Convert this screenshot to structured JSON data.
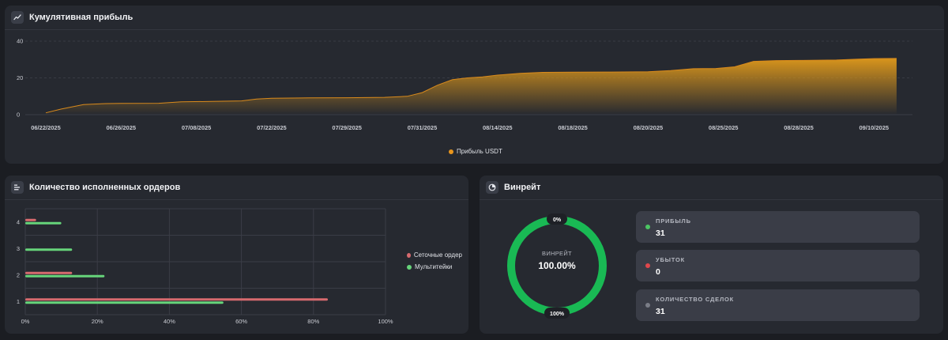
{
  "cumulative": {
    "title": "Кумулятивная прибыль",
    "icon": "trend-line-icon",
    "legend_label": "Прибыль USDT",
    "color": "#e8951c"
  },
  "orders": {
    "title": "Количество исполненных ордеров",
    "icon": "bar-list-icon",
    "legend": [
      "Сеточные ордер",
      "Мультитейки"
    ],
    "colors": [
      "#d76a6e",
      "#66d47a"
    ]
  },
  "winrate": {
    "title": "Винрейт",
    "icon": "pie-chart-icon",
    "center_label": "ВИНРЕЙТ",
    "center_value": "100.00%",
    "top_label": "0%",
    "bottom_label": "100%",
    "ring_color": "#19b954",
    "stats": [
      {
        "label": "ПРИБЫЛЬ",
        "value": "31",
        "color": "#4cc563"
      },
      {
        "label": "УБЫТОК",
        "value": "0",
        "color": "#e0474c"
      },
      {
        "label": "КОЛИЧЕСТВО СДЕЛОК",
        "value": "31",
        "color": "#7a7d87"
      }
    ]
  },
  "chart_data": [
    {
      "type": "area",
      "title": "Кумулятивная прибыль",
      "x_ticks": [
        "06/22/2025",
        "06/26/2025",
        "07/08/2025",
        "07/22/2025",
        "07/29/2025",
        "07/31/2025",
        "08/14/2025",
        "08/18/2025",
        "08/20/2025",
        "08/25/2025",
        "08/28/2025",
        "09/10/2025"
      ],
      "y_ticks": [
        0,
        20,
        40
      ],
      "ylim": [
        0,
        40
      ],
      "series": [
        {
          "name": "Прибыль USDT",
          "points": [
            [
              0.0,
              1.0
            ],
            [
              0.2,
              3.0
            ],
            [
              0.5,
              5.5
            ],
            [
              0.8,
              6.0
            ],
            [
              1.0,
              6.1
            ],
            [
              1.5,
              6.2
            ],
            [
              1.8,
              7.0
            ],
            [
              2.2,
              7.2
            ],
            [
              2.6,
              7.5
            ],
            [
              2.8,
              8.5
            ],
            [
              3.0,
              8.9
            ],
            [
              3.5,
              9.1
            ],
            [
              4.0,
              9.2
            ],
            [
              4.5,
              9.4
            ],
            [
              4.8,
              10.0
            ],
            [
              5.0,
              12.0
            ],
            [
              5.2,
              16.0
            ],
            [
              5.4,
              19.0
            ],
            [
              5.6,
              20.0
            ],
            [
              5.8,
              20.5
            ],
            [
              6.0,
              21.5
            ],
            [
              6.3,
              22.5
            ],
            [
              6.6,
              23.0
            ],
            [
              7.0,
              23.1
            ],
            [
              7.5,
              23.2
            ],
            [
              8.0,
              23.3
            ],
            [
              8.3,
              24.0
            ],
            [
              8.6,
              25.0
            ],
            [
              8.9,
              25.1
            ],
            [
              9.15,
              26.0
            ],
            [
              9.4,
              29.0
            ],
            [
              9.7,
              29.4
            ],
            [
              10.0,
              29.5
            ],
            [
              10.5,
              29.7
            ],
            [
              10.8,
              30.2
            ],
            [
              11.0,
              30.5
            ],
            [
              11.3,
              30.6
            ]
          ]
        }
      ],
      "grid": true,
      "legend": "bottom-center"
    },
    {
      "type": "bar",
      "orientation": "horizontal",
      "title": "Количество исполненных ордеров",
      "categories": [
        "4",
        "3",
        "2",
        "1"
      ],
      "x_ticks": [
        "0%",
        "20%",
        "40%",
        "60%",
        "80%",
        "100%"
      ],
      "xlim": [
        0,
        100
      ],
      "series": [
        {
          "name": "Сеточные ордер",
          "values": [
            3,
            0,
            13,
            84
          ]
        },
        {
          "name": "Мультитейки",
          "values": [
            10,
            13,
            22,
            55
          ]
        }
      ],
      "grid": true,
      "legend": "right"
    }
  ]
}
